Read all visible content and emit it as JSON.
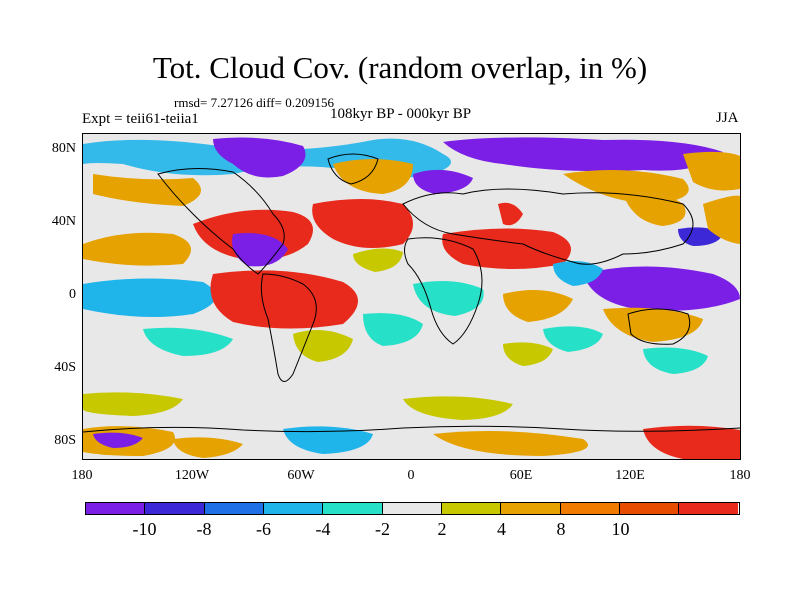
{
  "title": "Tot. Cloud Cov. (random overlap, in %)",
  "stats": "rmsd= 7.27126 diff= 0.209156",
  "expt": "Expt = teii61-teiia1",
  "period": "108kyr BP - 000kyr BP",
  "season": "JJA",
  "lat_labels": [
    "80N",
    "40N",
    "0",
    "40S",
    "80S"
  ],
  "lon_labels": [
    "180",
    "120W",
    "60W",
    "0",
    "60E",
    "120E",
    "180"
  ],
  "colorbar": {
    "labels": [
      "-10",
      "-8",
      "-6",
      "-4",
      "-2",
      "2",
      "4",
      "8",
      "10"
    ],
    "colors": [
      "#7b1fe6",
      "#3c28d6",
      "#1f6fe6",
      "#1fb4ea",
      "#27e0c8",
      "#e8e8e8",
      "#c8c800",
      "#e6a200",
      "#f07b00",
      "#e84c00",
      "#e82a1c"
    ]
  }
}
